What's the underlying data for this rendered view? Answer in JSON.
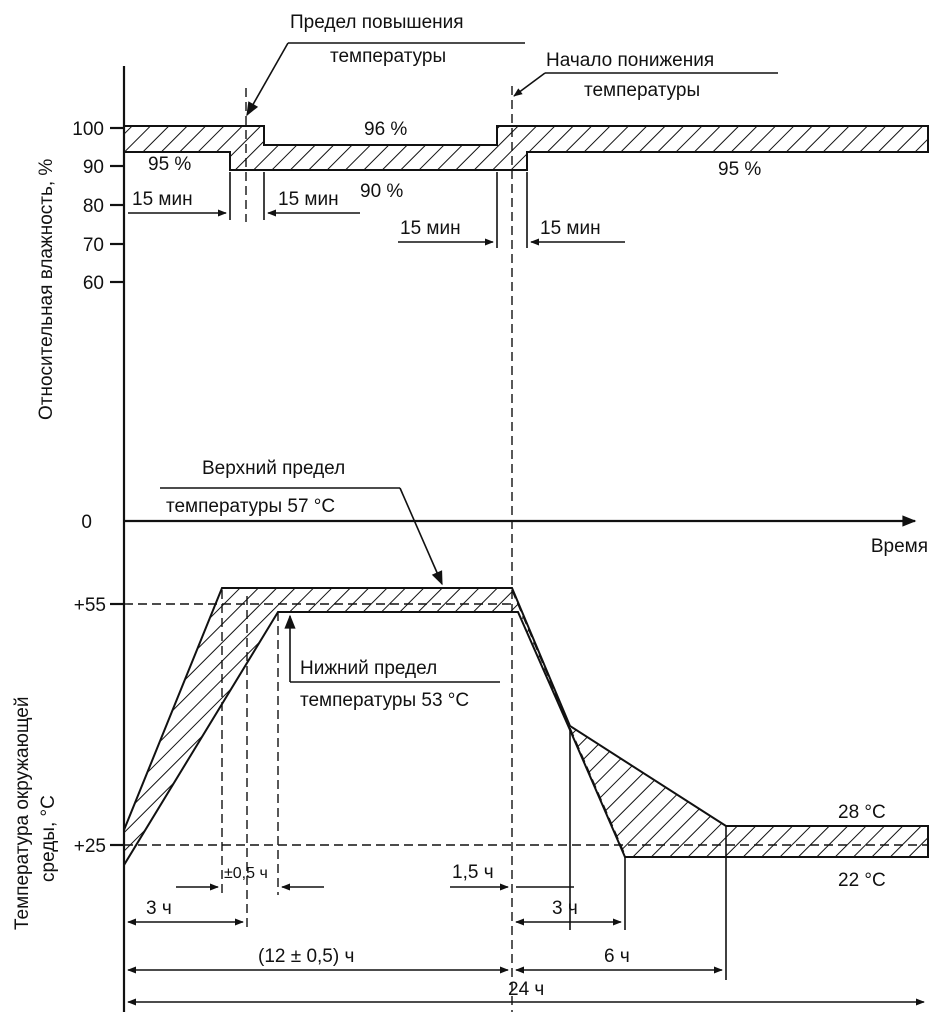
{
  "humidity": {
    "axis_label": "Относительная влажность, %",
    "ticks": [
      "100",
      "90",
      "80",
      "70",
      "60"
    ],
    "annotations": {
      "rise_limit_line1": "Предел повышения",
      "rise_limit_line2": "температуры",
      "fall_start_line1": "Начало понижения",
      "fall_start_line2": "температуры",
      "p96": "96 %",
      "p95_left": "95 %",
      "p90": "90 %",
      "p95_right": "95 %",
      "m15_a": "15 мин",
      "m15_b": "15 мин",
      "m15_c": "15 мин",
      "m15_d": "15 мин"
    }
  },
  "time_axis": {
    "zero": "0",
    "label": "Время"
  },
  "temperature": {
    "axis_label_line1": "Температура окружающей",
    "axis_label_line2": "среды, °С",
    "ticks": [
      "+55",
      "+25"
    ],
    "annotations": {
      "upper_limit_line1": "Верхний предел",
      "upper_limit_line2": "температуры 57 °С",
      "lower_limit_line1": "Нижний предел",
      "lower_limit_line2": "температуры 53 °С",
      "t28": "28 °С",
      "t22": "22 °С"
    }
  },
  "durations": {
    "pm05": "±0,5 ч",
    "h15": "1,5 ч",
    "h3_left": "3 ч",
    "h3_right": "3 ч",
    "h12": "(12 ± 0,5) ч",
    "h6": "6 ч",
    "h24": "24 ч"
  }
}
